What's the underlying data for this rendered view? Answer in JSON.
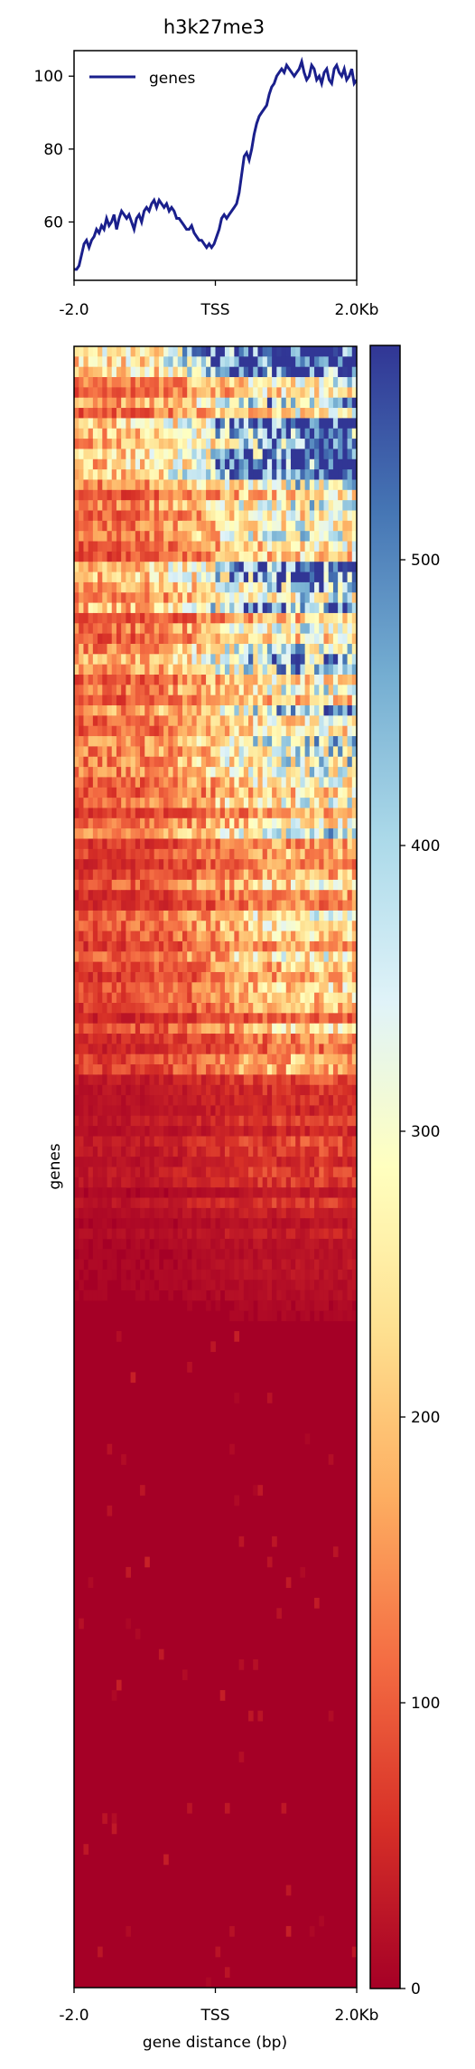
{
  "chart_data": [
    {
      "type": "line",
      "title": "h3k27me3",
      "x_ticks": [
        "-2.0",
        "TSS",
        "2.0Kb"
      ],
      "y_ticks": [
        60,
        80,
        100
      ],
      "ylim": [
        44,
        107
      ],
      "legend": {
        "placement": "top-left",
        "entries": [
          "genes"
        ]
      },
      "series": [
        {
          "name": "genes",
          "color": "#1a1f8c",
          "values": [
            47.0,
            47.0,
            48.0,
            51.0,
            54.0,
            55.0,
            53.0,
            55.0,
            56.0,
            58.0,
            57.0,
            59.0,
            58.0,
            61.0,
            59.0,
            60.0,
            62.0,
            58.0,
            61.0,
            63.0,
            62.0,
            61.0,
            62.0,
            60.0,
            58.0,
            61.0,
            62.0,
            60.0,
            63.0,
            64.0,
            63.0,
            65.0,
            66.0,
            64.0,
            66.0,
            65.0,
            64.0,
            65.0,
            63.0,
            64.0,
            63.0,
            61.0,
            61.0,
            60.0,
            59.0,
            58.0,
            58.0,
            59.0,
            57.0,
            56.0,
            55.0,
            55.0,
            54.0,
            53.0,
            54.0,
            53.0,
            54.0,
            56.0,
            58.0,
            61.0,
            62.0,
            61.0,
            62.0,
            63.0,
            64.0,
            65.0,
            68.0,
            73.0,
            78.0,
            79.0,
            77.0,
            80.0,
            84.0,
            87.0,
            89.0,
            90.0,
            91.0,
            92.0,
            95.0,
            97.0,
            98.0,
            100.0,
            101.0,
            102.0,
            101.0,
            103.0,
            102.0,
            101.0,
            100.0,
            101.0,
            102.0,
            104.0,
            101.0,
            99.0,
            100.0,
            103.0,
            102.0,
            99.0,
            100.0,
            98.0,
            101.0,
            102.0,
            99.0,
            98.0,
            102.0,
            103.0,
            101.0,
            100.0,
            102.0,
            99.0,
            100.0,
            102.0,
            98.0,
            99.0
          ]
        }
      ]
    },
    {
      "type": "heatmap",
      "ylabel": "genes",
      "xlabel": "gene distance (bp)",
      "x_ticks": [
        "-2.0",
        "TSS",
        "2.0Kb"
      ],
      "colorbar": {
        "ticks": [
          0,
          100,
          200,
          300,
          400,
          500
        ],
        "range": [
          0,
          575
        ],
        "colormap": "RdYlBu"
      },
      "n_rows": 160,
      "n_cols": 60,
      "description_of_values": "per-gene signal; top ~70 genes high and variable, rising right of TSS; remaining genes near 0"
    }
  ]
}
